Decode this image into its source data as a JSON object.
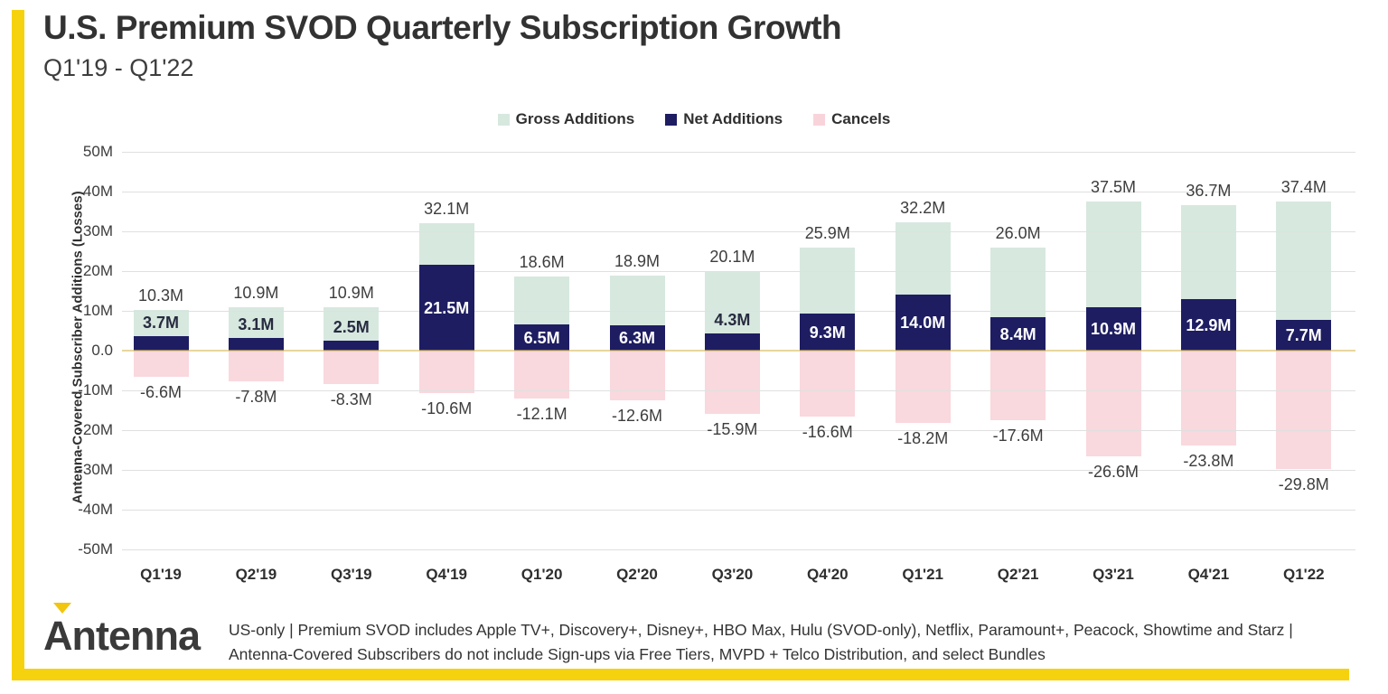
{
  "title": "U.S. Premium SVOD Quarterly Subscription Growth",
  "subtitle": "Q1'19 - Q1'22",
  "legend": [
    {
      "label": "Gross Additions",
      "color": "#d7e8df"
    },
    {
      "label": "Net Additions",
      "color": "#1e1d62"
    },
    {
      "label": "Cancels",
      "color": "#f8d4da"
    }
  ],
  "chart_data": {
    "type": "bar",
    "title": "U.S. Premium SVOD Quarterly Subscription Growth",
    "subtitle": "Q1'19 - Q1'22",
    "ylabel": "Antenna-Covered Subscriber Additions (Losses)",
    "xlabel": "",
    "unit": "M",
    "ylim": [
      -50,
      50
    ],
    "ytick_step": 10,
    "ytick_labels": [
      "50M",
      "40M",
      "30M",
      "20M",
      "10M",
      "0.0",
      "-10M",
      "-20M",
      "-30M",
      "-40M",
      "-50M"
    ],
    "grid": true,
    "legend_position": "top",
    "categories": [
      "Q1'19",
      "Q2'19",
      "Q3'19",
      "Q4'19",
      "Q1'20",
      "Q2'20",
      "Q3'20",
      "Q4'20",
      "Q1'21",
      "Q2'21",
      "Q3'21",
      "Q4'21",
      "Q1'22"
    ],
    "series": [
      {
        "name": "Gross Additions",
        "color": "#d7e8df",
        "values": [
          10.3,
          10.9,
          10.9,
          32.1,
          18.6,
          18.9,
          20.1,
          25.9,
          32.2,
          26.0,
          37.5,
          36.7,
          37.4
        ]
      },
      {
        "name": "Net Additions",
        "color": "#1e1d62",
        "values": [
          3.7,
          3.1,
          2.5,
          21.5,
          6.5,
          6.3,
          4.3,
          9.3,
          14.0,
          8.4,
          10.9,
          12.9,
          7.7
        ]
      },
      {
        "name": "Cancels",
        "color": "#f8d4da",
        "values": [
          -6.6,
          -7.8,
          -8.3,
          -10.6,
          -12.1,
          -12.6,
          -15.9,
          -16.6,
          -18.2,
          -17.6,
          -26.6,
          -23.8,
          -29.8
        ]
      }
    ],
    "zero_line_color": "#e9d98f"
  },
  "colors": {
    "brand_yellow": "#f6d20e",
    "navy": "#1e1d62",
    "mint": "#d7e8df",
    "pink": "#f8d4da",
    "text_dark": "#323232"
  },
  "footer": {
    "logo_text": "Antenna",
    "note": "US-only | Premium SVOD includes Apple TV+, Discovery+, Disney+, HBO Max, Hulu (SVOD-only), Netflix, Paramount+, Peacock, Showtime and Starz | Antenna-Covered Subscribers do not include Sign-ups via Free Tiers, MVPD + Telco Distribution, and select Bundles"
  }
}
